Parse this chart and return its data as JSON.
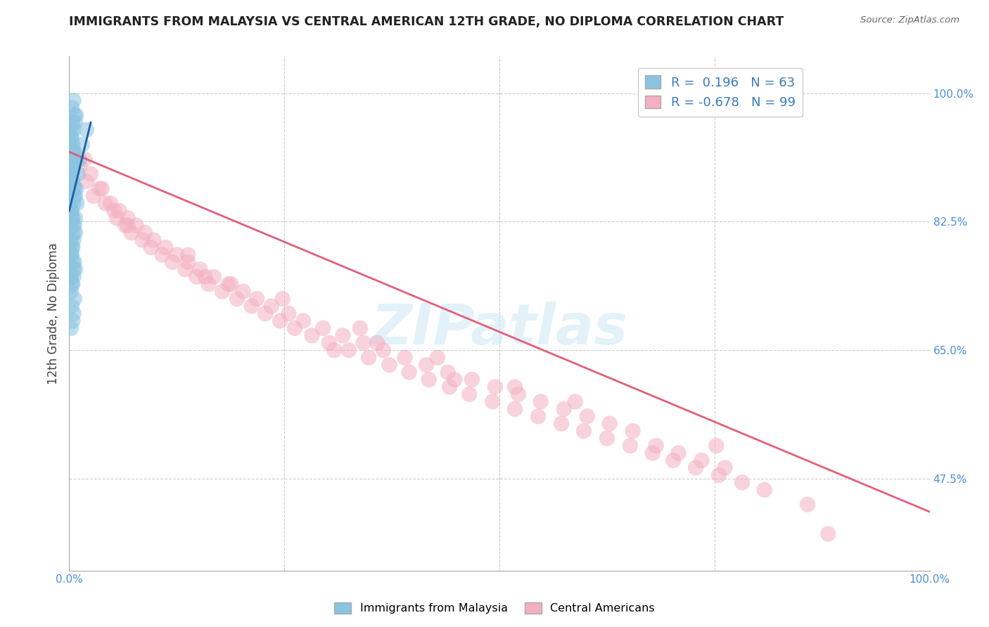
{
  "title": "IMMIGRANTS FROM MALAYSIA VS CENTRAL AMERICAN 12TH GRADE, NO DIPLOMA CORRELATION CHART",
  "source": "Source: ZipAtlas.com",
  "ylabel": "12th Grade, No Diploma",
  "xlim": [
    0.0,
    1.0
  ],
  "ylim": [
    0.35,
    1.05
  ],
  "ytick_labels": [
    "47.5%",
    "65.0%",
    "82.5%",
    "100.0%"
  ],
  "ytick_vals": [
    0.475,
    0.65,
    0.825,
    1.0
  ],
  "blue_color": "#89c4e1",
  "pink_color": "#f4afc0",
  "blue_line_color": "#1a5fa8",
  "pink_line_color": "#e0607a",
  "blue_R": 0.196,
  "blue_N": 63,
  "pink_R": -0.678,
  "pink_N": 99,
  "malaysia_x": [
    0.005,
    0.008,
    0.003,
    0.004,
    0.006,
    0.002,
    0.007,
    0.003,
    0.005,
    0.004,
    0.002,
    0.006,
    0.003,
    0.005,
    0.004,
    0.002,
    0.007,
    0.003,
    0.005,
    0.004,
    0.002,
    0.006,
    0.003,
    0.005,
    0.004,
    0.002,
    0.007,
    0.003,
    0.005,
    0.004,
    0.002,
    0.006,
    0.003,
    0.005,
    0.004,
    0.002,
    0.007,
    0.003,
    0.005,
    0.004,
    0.002,
    0.006,
    0.003,
    0.005,
    0.004,
    0.002,
    0.007,
    0.003,
    0.005,
    0.004,
    0.002,
    0.006,
    0.003,
    0.005,
    0.004,
    0.002,
    0.007,
    0.008,
    0.009,
    0.01,
    0.012,
    0.015,
    0.02
  ],
  "malaysia_y": [
    0.99,
    0.97,
    0.98,
    0.96,
    0.97,
    0.95,
    0.96,
    0.94,
    0.95,
    0.93,
    0.94,
    0.92,
    0.93,
    0.91,
    0.92,
    0.9,
    0.91,
    0.89,
    0.9,
    0.88,
    0.89,
    0.87,
    0.88,
    0.86,
    0.87,
    0.85,
    0.86,
    0.84,
    0.85,
    0.83,
    0.84,
    0.82,
    0.83,
    0.81,
    0.82,
    0.8,
    0.81,
    0.79,
    0.8,
    0.79,
    0.78,
    0.77,
    0.78,
    0.76,
    0.77,
    0.75,
    0.76,
    0.74,
    0.75,
    0.74,
    0.73,
    0.72,
    0.71,
    0.7,
    0.69,
    0.68,
    0.83,
    0.87,
    0.85,
    0.89,
    0.91,
    0.93,
    0.95
  ],
  "central_x": [
    0.005,
    0.012,
    0.02,
    0.028,
    0.018,
    0.035,
    0.025,
    0.042,
    0.055,
    0.038,
    0.065,
    0.048,
    0.072,
    0.058,
    0.085,
    0.068,
    0.095,
    0.078,
    0.108,
    0.088,
    0.12,
    0.098,
    0.135,
    0.112,
    0.148,
    0.125,
    0.162,
    0.138,
    0.178,
    0.152,
    0.195,
    0.168,
    0.212,
    0.185,
    0.228,
    0.202,
    0.245,
    0.218,
    0.262,
    0.235,
    0.282,
    0.255,
    0.302,
    0.272,
    0.325,
    0.295,
    0.348,
    0.318,
    0.372,
    0.342,
    0.395,
    0.365,
    0.418,
    0.39,
    0.442,
    0.415,
    0.465,
    0.44,
    0.492,
    0.468,
    0.518,
    0.495,
    0.545,
    0.522,
    0.572,
    0.548,
    0.598,
    0.575,
    0.625,
    0.602,
    0.652,
    0.628,
    0.678,
    0.655,
    0.702,
    0.682,
    0.728,
    0.708,
    0.755,
    0.735,
    0.782,
    0.762,
    0.808,
    0.158,
    0.248,
    0.338,
    0.428,
    0.518,
    0.052,
    0.188,
    0.358,
    0.588,
    0.752,
    0.858,
    0.882,
    0.308,
    0.448,
    0.068,
    0.138
  ],
  "central_y": [
    0.92,
    0.9,
    0.88,
    0.86,
    0.91,
    0.87,
    0.89,
    0.85,
    0.83,
    0.87,
    0.82,
    0.85,
    0.81,
    0.84,
    0.8,
    0.83,
    0.79,
    0.82,
    0.78,
    0.81,
    0.77,
    0.8,
    0.76,
    0.79,
    0.75,
    0.78,
    0.74,
    0.77,
    0.73,
    0.76,
    0.72,
    0.75,
    0.71,
    0.74,
    0.7,
    0.73,
    0.69,
    0.72,
    0.68,
    0.71,
    0.67,
    0.7,
    0.66,
    0.69,
    0.65,
    0.68,
    0.64,
    0.67,
    0.63,
    0.66,
    0.62,
    0.65,
    0.61,
    0.64,
    0.6,
    0.63,
    0.59,
    0.62,
    0.58,
    0.61,
    0.57,
    0.6,
    0.56,
    0.59,
    0.55,
    0.58,
    0.54,
    0.57,
    0.53,
    0.56,
    0.52,
    0.55,
    0.51,
    0.54,
    0.5,
    0.52,
    0.49,
    0.51,
    0.48,
    0.5,
    0.47,
    0.49,
    0.46,
    0.75,
    0.72,
    0.68,
    0.64,
    0.6,
    0.84,
    0.74,
    0.66,
    0.58,
    0.52,
    0.44,
    0.4,
    0.65,
    0.61,
    0.82,
    0.78
  ],
  "pink_trend_x0": 0.0,
  "pink_trend_y0": 0.92,
  "pink_trend_x1": 1.0,
  "pink_trend_y1": 0.43,
  "blue_trend_x0": 0.0,
  "blue_trend_y0": 0.84,
  "blue_trend_x1": 0.025,
  "blue_trend_y1": 0.96
}
